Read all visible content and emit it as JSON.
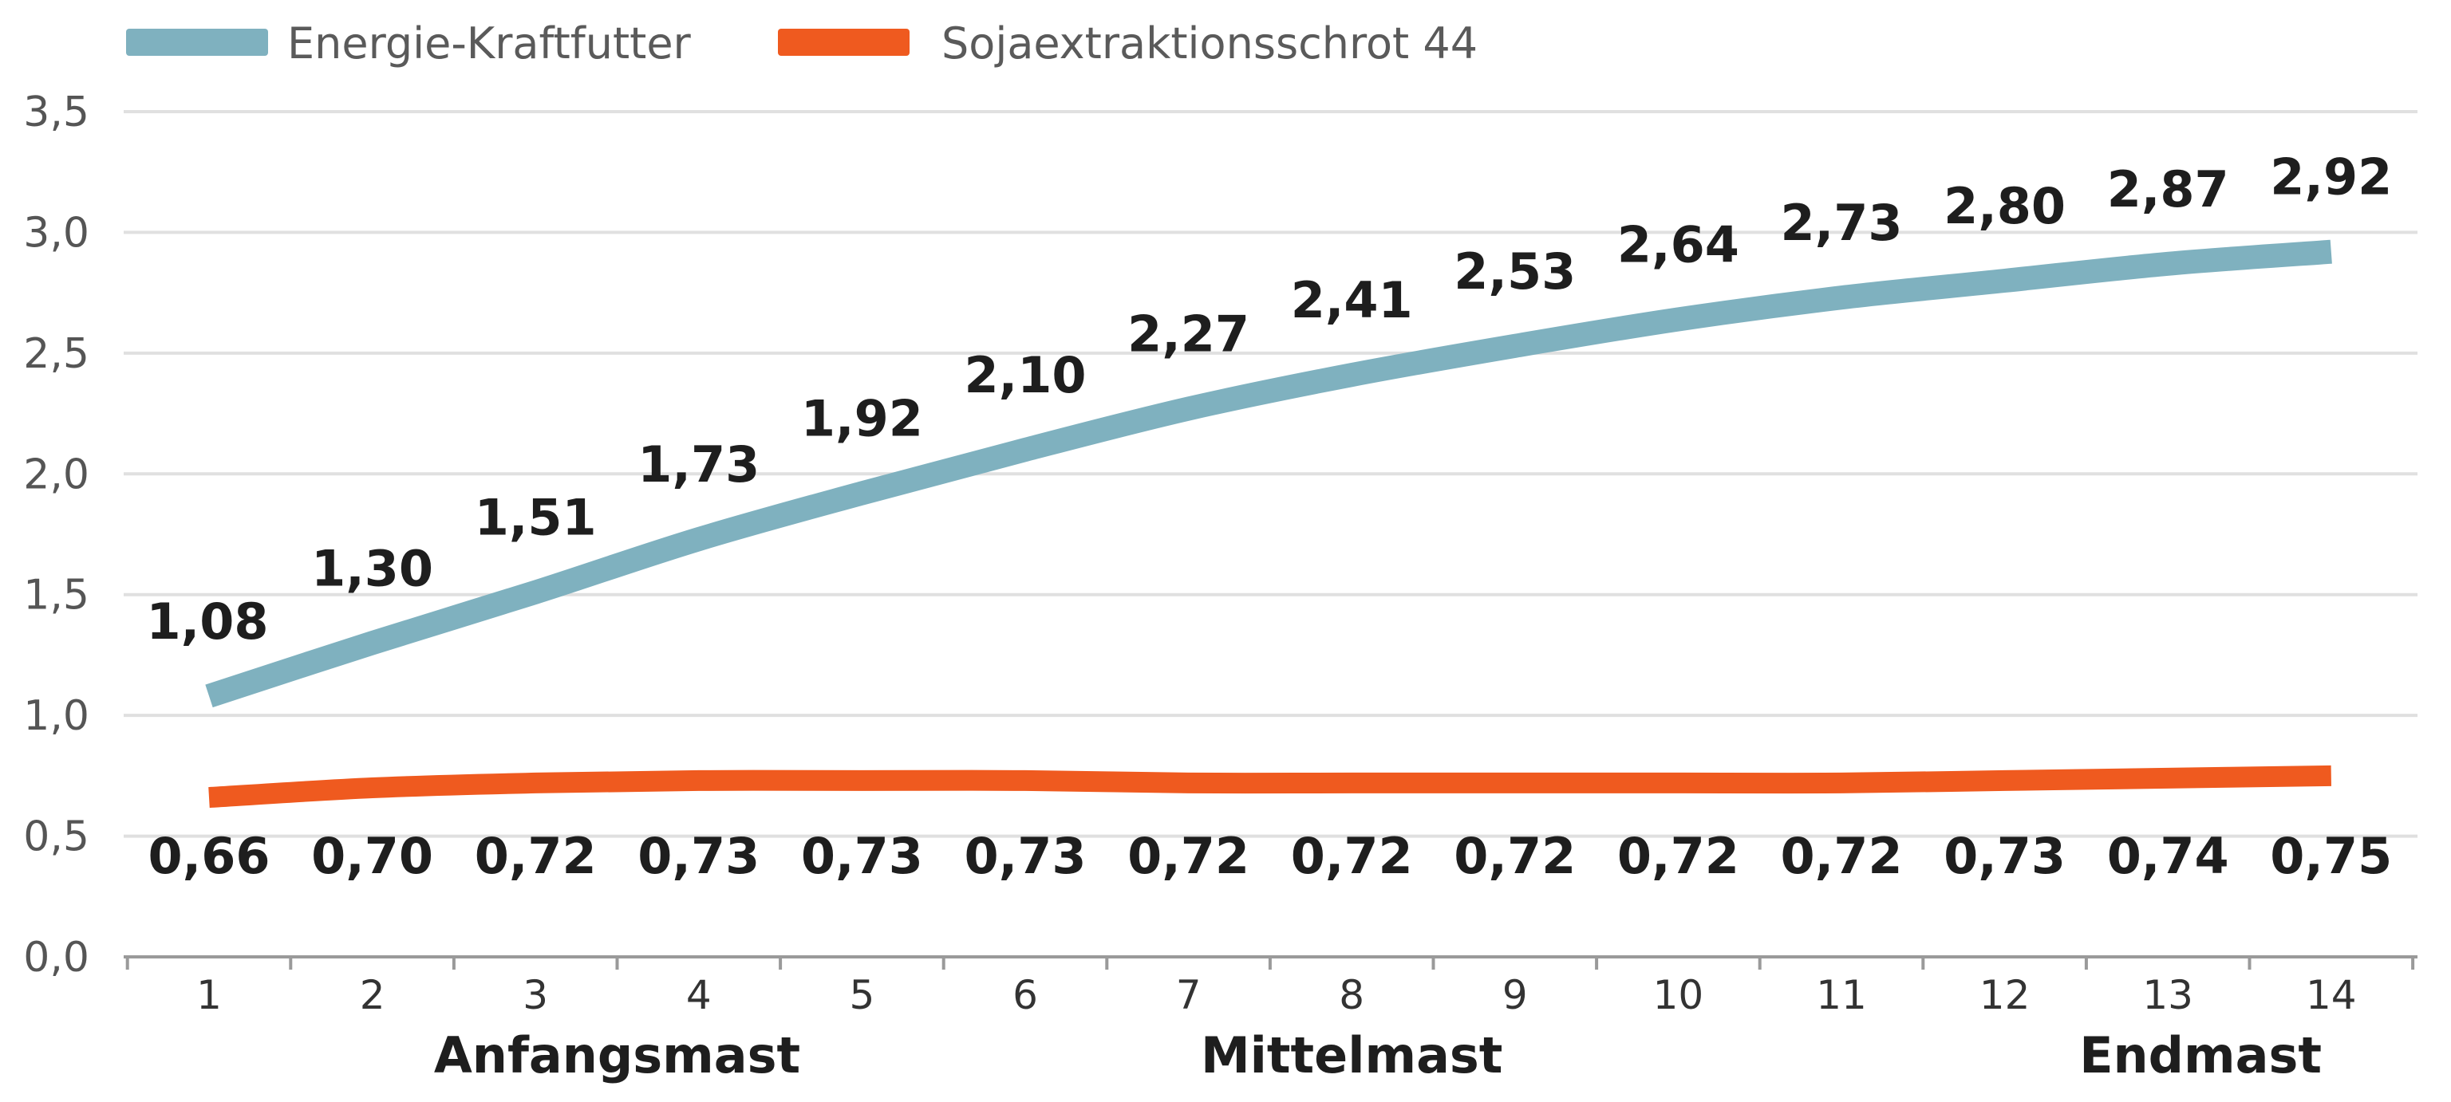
{
  "chart_data": {
    "type": "line",
    "title": "",
    "xlabel": "",
    "ylabel": "",
    "x": [
      1,
      2,
      3,
      4,
      5,
      6,
      7,
      8,
      9,
      10,
      11,
      12,
      13,
      14
    ],
    "x_tick_labels": [
      "1",
      "2",
      "3",
      "4",
      "5",
      "6",
      "7",
      "8",
      "9",
      "10",
      "11",
      "12",
      "13",
      "14"
    ],
    "y_tick_labels": [
      "0,0",
      "0,5",
      "1,0",
      "1,5",
      "2,0",
      "2,5",
      "3,0",
      "3,5"
    ],
    "ylim": [
      0,
      3.5
    ],
    "grid": true,
    "legend_position": "top-left",
    "phase_labels": [
      {
        "text": "Anfangsmast",
        "at_x": 3.5
      },
      {
        "text": "Mittelmast",
        "at_x": 8
      },
      {
        "text": "Endmast",
        "at_x": 13.2
      }
    ],
    "series": [
      {
        "name": "Energie-Kraftfutter",
        "color": "#7fb1bf",
        "values": [
          1.08,
          1.3,
          1.51,
          1.73,
          1.92,
          2.1,
          2.27,
          2.41,
          2.53,
          2.64,
          2.73,
          2.8,
          2.87,
          2.92
        ],
        "labels": [
          "1,08",
          "1,30",
          "1,51",
          "1,73",
          "1,92",
          "2,10",
          "2,27",
          "2,41",
          "2,53",
          "2,64",
          "2,73",
          "2,80",
          "2,87",
          "2,92"
        ],
        "label_position": "above"
      },
      {
        "name": "Sojaextraktionsschrot 44",
        "color": "#ef5a1f",
        "values": [
          0.66,
          0.7,
          0.72,
          0.73,
          0.73,
          0.73,
          0.72,
          0.72,
          0.72,
          0.72,
          0.72,
          0.73,
          0.74,
          0.75
        ],
        "labels": [
          "0,66",
          "0,70",
          "0,72",
          "0,73",
          "0,73",
          "0,73",
          "0,72",
          "0,72",
          "0,72",
          "0,72",
          "0,72",
          "0,73",
          "0,74",
          "0,75"
        ],
        "label_position": "below"
      }
    ]
  }
}
